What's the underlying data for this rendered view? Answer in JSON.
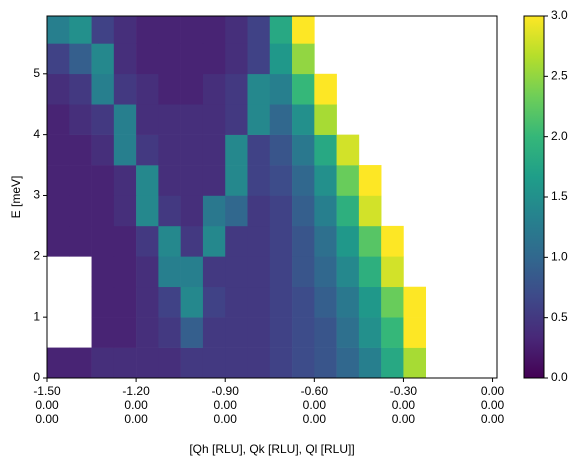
{
  "chart_data": {
    "type": "heatmap",
    "xlabel": "[Qh [RLU], Qk [RLU], Ql [RLU]]",
    "ylabel": "E [meV]",
    "colormap": "viridis",
    "x_edges": [
      -1.5,
      -1.425,
      -1.35,
      -1.275,
      -1.2,
      -1.125,
      -1.05,
      -0.975,
      -0.9,
      -0.825,
      -0.75,
      -0.675,
      -0.6,
      -0.525,
      -0.45,
      -0.375,
      -0.3,
      -0.225,
      -0.15,
      -0.075,
      0
    ],
    "y_edges": [
      0,
      0.5,
      1,
      1.5,
      2,
      2.5,
      3,
      3.5,
      4,
      4.5,
      5,
      5.5,
      6
    ],
    "values": [
      [
        0.3,
        0.3,
        0.4,
        0.4,
        0.4,
        0.4,
        0.5,
        0.5,
        0.5,
        0.5,
        0.6,
        0.7,
        0.8,
        1.0,
        1.3,
        1.8,
        2.6,
        null,
        null,
        null
      ],
      [
        null,
        null,
        0.3,
        0.3,
        0.4,
        0.5,
        0.9,
        0.5,
        0.5,
        0.5,
        0.6,
        0.7,
        0.8,
        1.1,
        1.5,
        2.0,
        3.0,
        null,
        null,
        null
      ],
      [
        null,
        null,
        0.3,
        0.3,
        0.4,
        0.6,
        1.4,
        0.6,
        0.5,
        0.5,
        0.6,
        0.7,
        0.9,
        1.2,
        1.6,
        2.3,
        3.0,
        null,
        null,
        null
      ],
      [
        null,
        null,
        0.3,
        0.3,
        0.4,
        1.3,
        1.3,
        0.5,
        0.5,
        0.5,
        0.6,
        0.8,
        1.0,
        1.4,
        1.9,
        2.8,
        null,
        null,
        null,
        null
      ],
      [
        0.3,
        0.3,
        0.3,
        0.3,
        0.5,
        1.4,
        0.5,
        1.4,
        0.5,
        0.5,
        0.6,
        0.8,
        1.1,
        1.6,
        2.2,
        3.0,
        null,
        null,
        null,
        null
      ],
      [
        0.3,
        0.3,
        0.3,
        0.4,
        1.4,
        0.5,
        0.4,
        1.2,
        1.0,
        0.5,
        0.6,
        0.9,
        1.3,
        1.9,
        2.8,
        null,
        null,
        null,
        null,
        null
      ],
      [
        0.3,
        0.3,
        0.3,
        0.4,
        1.4,
        0.4,
        0.4,
        0.4,
        1.4,
        0.6,
        0.7,
        1.0,
        1.5,
        2.3,
        3.0,
        null,
        null,
        null,
        null,
        null
      ],
      [
        0.3,
        0.3,
        0.4,
        1.3,
        0.5,
        0.4,
        0.4,
        0.4,
        1.4,
        0.6,
        0.8,
        1.2,
        1.8,
        2.8,
        null,
        null,
        null,
        null,
        null,
        null
      ],
      [
        0.3,
        0.4,
        0.5,
        1.3,
        0.4,
        0.4,
        0.4,
        0.4,
        0.5,
        1.4,
        1.0,
        1.5,
        2.6,
        null,
        null,
        null,
        null,
        null,
        null,
        null
      ],
      [
        0.4,
        0.5,
        1.3,
        0.5,
        0.4,
        0.3,
        0.3,
        0.4,
        0.5,
        1.4,
        1.3,
        2.0,
        3.0,
        null,
        null,
        null,
        null,
        null,
        null,
        null
      ],
      [
        0.6,
        0.9,
        1.4,
        0.4,
        0.3,
        0.3,
        0.3,
        0.3,
        0.4,
        0.6,
        1.6,
        2.5,
        null,
        null,
        null,
        null,
        null,
        null,
        null,
        null
      ],
      [
        1.3,
        1.5,
        0.6,
        0.4,
        0.3,
        0.3,
        0.3,
        0.3,
        0.4,
        0.6,
        1.8,
        3.0,
        null,
        null,
        null,
        null,
        null,
        null,
        null,
        null
      ]
    ],
    "xlim": [
      -1.5,
      0.015
    ],
    "ylim": [
      0,
      5.95
    ],
    "xticks": [
      {
        "value": -1.5,
        "label": [
          "-1.50",
          "0.00",
          "0.00"
        ]
      },
      {
        "value": -1.2,
        "label": [
          "-1.20",
          "0.00",
          "0.00"
        ]
      },
      {
        "value": -0.9,
        "label": [
          "-0.90",
          "0.00",
          "0.00"
        ]
      },
      {
        "value": -0.6,
        "label": [
          "-0.60",
          "0.00",
          "0.00"
        ]
      },
      {
        "value": -0.3,
        "label": [
          "-0.30",
          "0.00",
          "0.00"
        ]
      },
      {
        "value": 0,
        "label": [
          "0.00",
          "0.00",
          "0.00"
        ]
      }
    ],
    "yticks": [
      0,
      1,
      2,
      3,
      4,
      5
    ],
    "clim": [
      0,
      3
    ],
    "cticks": [
      {
        "value": 0,
        "label": "0.0"
      },
      {
        "value": 0.5,
        "label": "0.5"
      },
      {
        "value": 1,
        "label": "1.0"
      },
      {
        "value": 1.5,
        "label": "1.5"
      },
      {
        "value": 2,
        "label": "2.0"
      },
      {
        "value": 2.5,
        "label": "2.5"
      },
      {
        "value": 3,
        "label": "3.0"
      }
    ]
  }
}
